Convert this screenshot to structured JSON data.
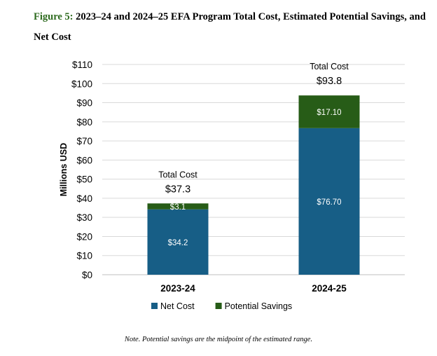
{
  "figure": {
    "label": "Figure 5:",
    "title": "2023–24 and 2024–25 EFA Program Total Cost, Estimated Potential Savings, and Net Cost",
    "note": "Note. Potential savings are the midpoint of the estimated range."
  },
  "colors": {
    "title_label": "#2e6b1f",
    "net_cost": "#175e86",
    "potential_savings": "#275c17"
  },
  "chart_data": {
    "type": "bar",
    "stacked": true,
    "categories": [
      "2023-24",
      "2024-25"
    ],
    "series": [
      {
        "name": "Net Cost",
        "values": [
          34.2,
          76.7
        ],
        "labels": [
          "$34.2",
          "$76.70"
        ],
        "color": "#175e86"
      },
      {
        "name": "Potential Savings",
        "values": [
          3.1,
          17.1
        ],
        "labels": [
          "$3.1",
          "$17.10"
        ],
        "color": "#275c17"
      }
    ],
    "totals": [
      {
        "caption": "Total Cost",
        "value": "$37.3"
      },
      {
        "caption": "Total Cost",
        "value": "$93.8"
      }
    ],
    "ylabel": "Millions USD",
    "ylim": [
      0,
      110
    ],
    "yticks": [
      "$0",
      "$10",
      "$20",
      "$30",
      "$40",
      "$50",
      "$60",
      "$70",
      "$80",
      "$90",
      "$100",
      "$110"
    ],
    "grid": true,
    "legend_position": "bottom"
  }
}
